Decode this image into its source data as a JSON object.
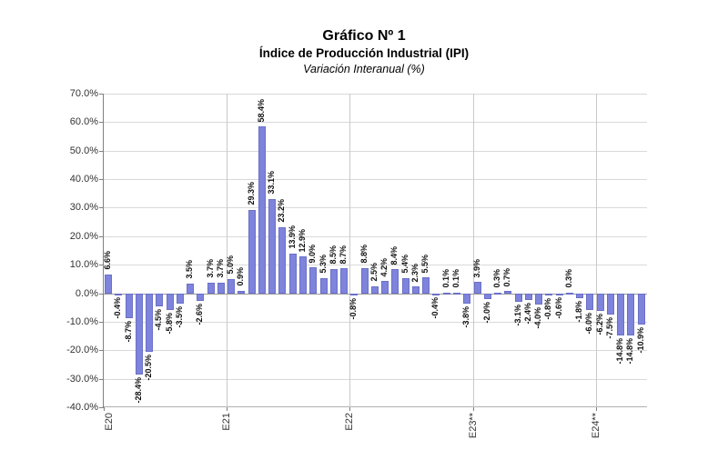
{
  "page": {
    "title": "Gráfico Nº 1",
    "subtitle": "Índice de Producción Industrial (IPI)",
    "subsubtitle": "Variación Interanual (%)"
  },
  "chart_data": {
    "type": "bar",
    "title": "Gráfico Nº 1",
    "subtitle": "Índice de Producción Industrial (IPI)",
    "ylabel": "Variación Interanual (%)",
    "xlabel": "",
    "ylim": [
      -40,
      70
    ],
    "ytick_step": 10,
    "grid": true,
    "legend": "none",
    "bar_color": "#7e84db",
    "y_tick_labels": [
      "70.0%",
      "60.0%",
      "50.0%",
      "40.0%",
      "30.0%",
      "20.0%",
      "10.0%",
      "0.0%",
      "-10.0%",
      "-20.0%",
      "-30.0%",
      "-40.0%"
    ],
    "x_tick_labels": [
      "E20",
      "E21",
      "E22",
      "E23**",
      "E24**"
    ],
    "x_tick_positions_months": [
      0,
      12,
      24,
      36,
      48
    ],
    "categories_note": "monthly series, Jan 2020 (E20) to May 2024 (E24**)",
    "values": [
      6.6,
      -0.4,
      -8.7,
      -28.4,
      -20.5,
      -4.5,
      -5.8,
      -3.5,
      3.5,
      -2.6,
      3.7,
      3.7,
      5.0,
      0.9,
      29.3,
      58.4,
      33.1,
      23.2,
      13.9,
      12.9,
      9.0,
      5.3,
      8.5,
      8.7,
      -0.8,
      8.8,
      2.5,
      4.2,
      8.4,
      5.4,
      2.3,
      5.5,
      -0.4,
      0.1,
      0.1,
      -3.8,
      3.9,
      -2.0,
      0.3,
      0.7,
      -3.1,
      -2.4,
      -4.0,
      -0.8,
      -0.6,
      0.3,
      -1.8,
      -6.0,
      -6.2,
      -7.5,
      -14.8,
      -14.8,
      -10.9
    ],
    "data_label_format": "0.0%"
  }
}
